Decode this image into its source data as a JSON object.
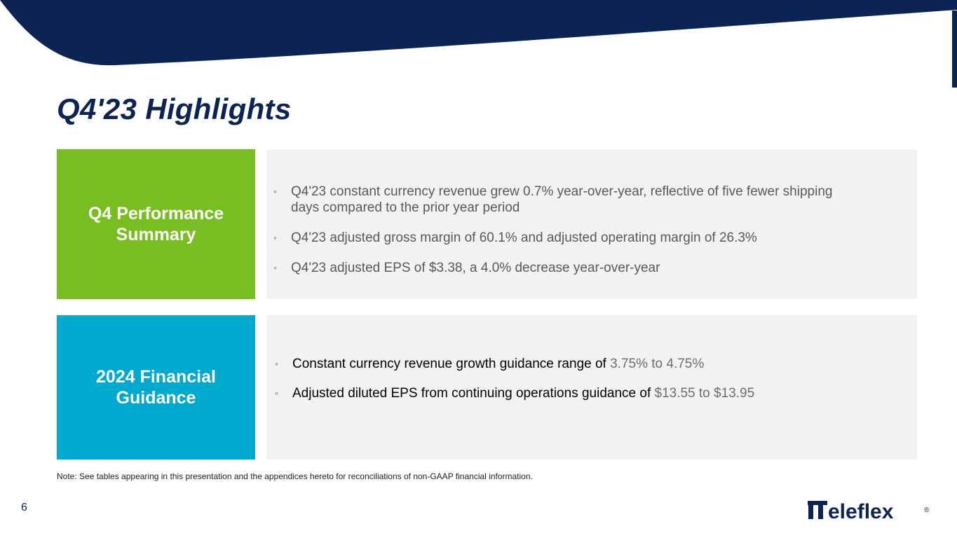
{
  "slide": {
    "title": "Q4'23 Highlights",
    "page_number": "6",
    "note": "Note: See tables appearing in this presentation and the appendices hereto for reconciliations of non-GAAP financial information."
  },
  "sections": {
    "performance": {
      "label_line1": "Q4 Performance",
      "label_line2": "Summary",
      "bullets": [
        "Q4'23 constant currency revenue grew 0.7% year-over-year, reflective of five fewer shipping days compared to the prior year period",
        "Q4'23 adjusted gross margin of 60.1% and adjusted operating margin of 26.3%",
        "Q4'23 adjusted EPS of $3.38, a 4.0% decrease year-over-year"
      ]
    },
    "guidance": {
      "label_line1": "2024 Financial",
      "label_line2": "Guidance",
      "bullets": [
        {
          "text": "Constant currency revenue growth guidance range of ",
          "value": "3.75% to 4.75%"
        },
        {
          "text": "Adjusted diluted EPS from continuing operations guidance of ",
          "value": "$13.55 to $13.95"
        }
      ]
    }
  },
  "bullet_symbol": "◦",
  "logo": {
    "text": "Teleflex",
    "registered": "®"
  },
  "colors": {
    "navy": "#0b2454",
    "green": "#78be20",
    "blue": "#00a9ce",
    "panel": "#f2f2f2"
  }
}
